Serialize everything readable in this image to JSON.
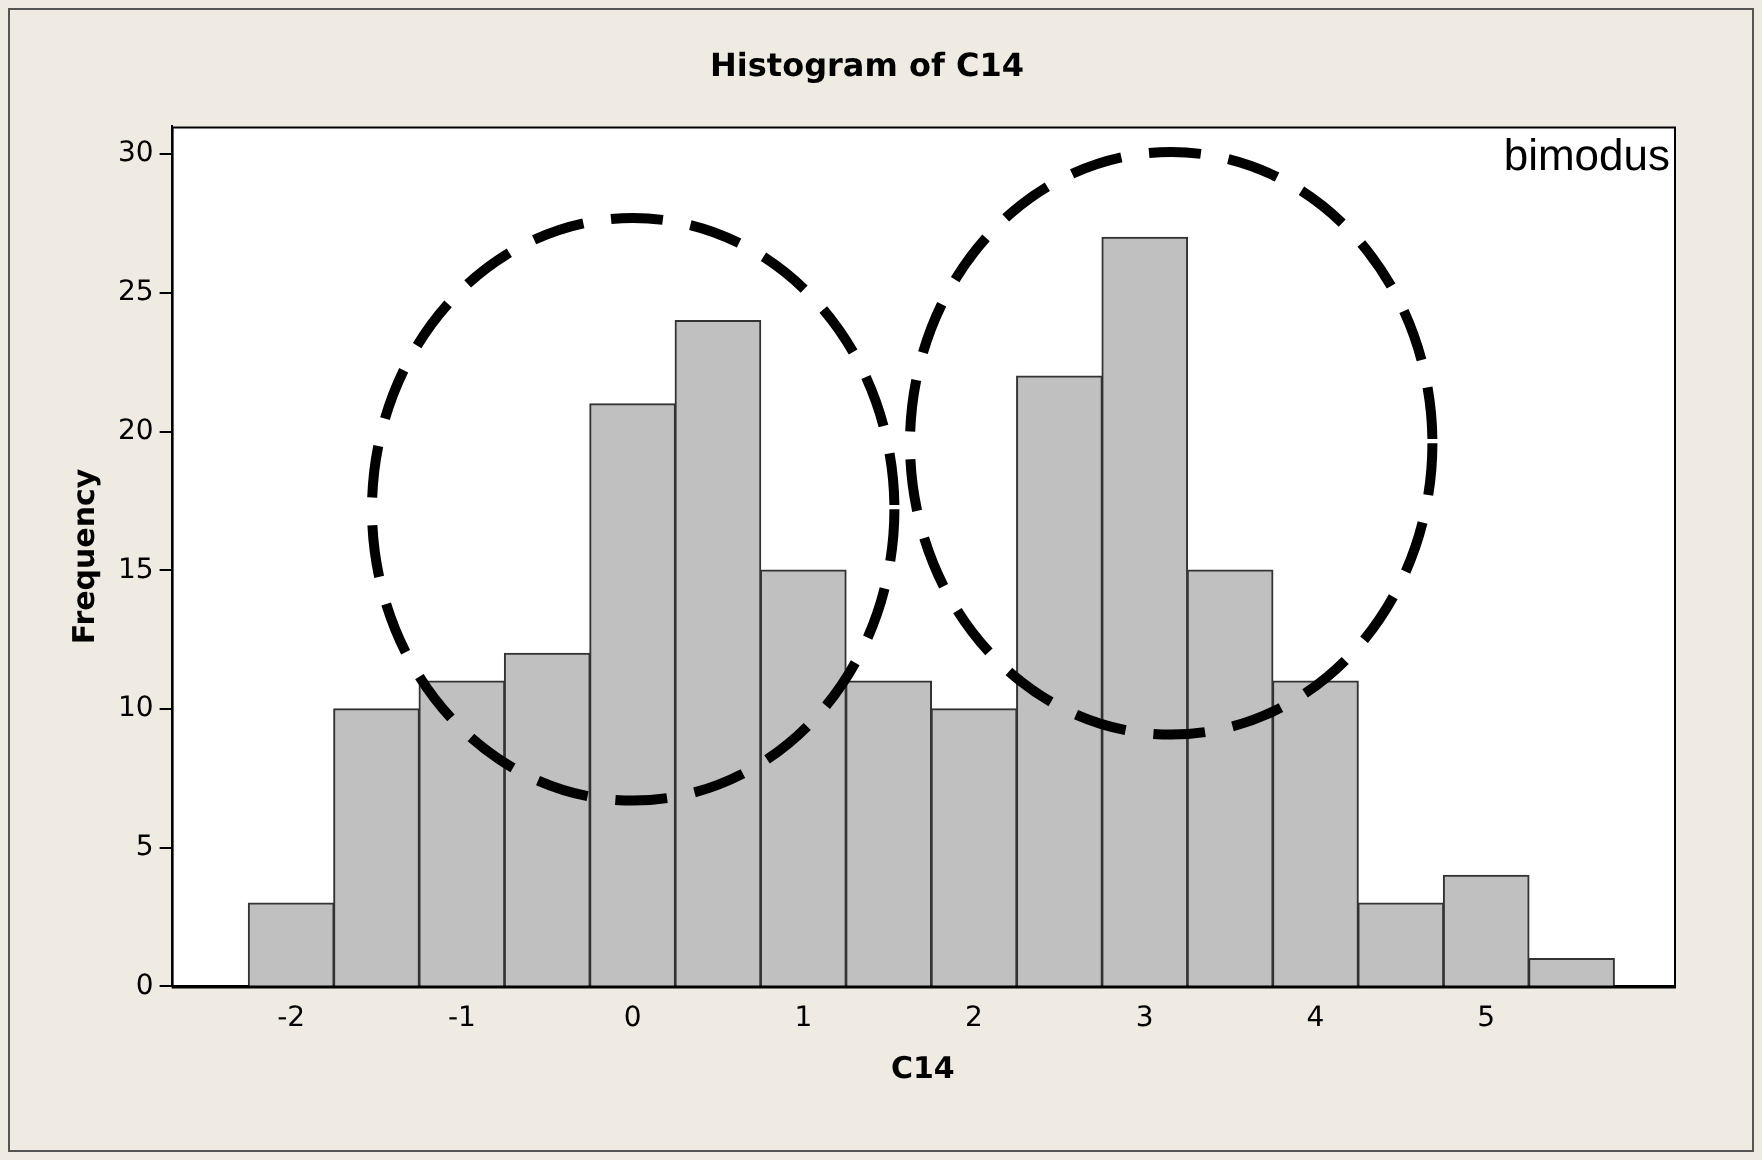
{
  "chart_data": {
    "type": "histogram",
    "title": "Histogram of C14",
    "xlabel": "C14",
    "ylabel": "Frequency",
    "bins": [
      -2.25,
      -1.75,
      -1.25,
      -0.75,
      -0.25,
      0.25,
      0.75,
      1.25,
      1.75,
      2.25,
      2.75,
      3.25,
      3.75,
      4.25,
      4.75,
      5.25,
      5.75
    ],
    "values": [
      3,
      10,
      11,
      12,
      21,
      24,
      15,
      11,
      10,
      22,
      27,
      15,
      11,
      3,
      4,
      1
    ],
    "color": "#c0c0c0",
    "xlim": [
      -2.7,
      6.1
    ],
    "xticks": [
      -2,
      -1,
      0,
      1,
      2,
      3,
      4,
      5
    ],
    "ylim": [
      0,
      31
    ],
    "yticks": [
      0,
      5,
      10,
      15,
      20,
      25,
      30
    ],
    "grid": false,
    "legend": false,
    "annotations": [
      "bimodus"
    ]
  }
}
